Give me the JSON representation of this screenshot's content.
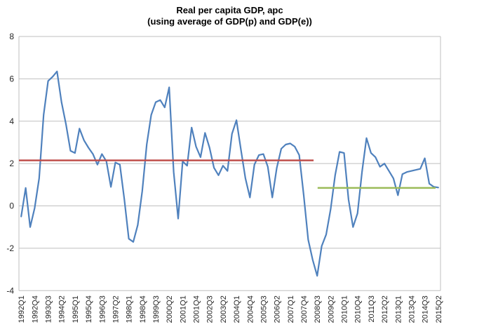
{
  "chart_data": {
    "type": "line",
    "title": "Real per capita GDP, apc",
    "subtitle": "(using average of GDP(p) and GDP(e))",
    "legend": "none",
    "grid": true,
    "ylim": [
      -4,
      8
    ],
    "yticks": [
      8,
      6,
      4,
      2,
      0,
      -2,
      -4
    ],
    "x_label_step": 3,
    "colors": {
      "series_line": "#4F81BD",
      "red_average_line": "#C0504D",
      "green_average_line": "#9BBB59",
      "gridline": "#BFBFBF",
      "axis_text": "#262626",
      "background": "#FFFFFF"
    },
    "categories": [
      "1992Q1",
      "1992Q2",
      "1992Q3",
      "1992Q4",
      "1993Q1",
      "1993Q2",
      "1993Q3",
      "1993Q4",
      "1994Q1",
      "1994Q2",
      "1994Q3",
      "1994Q4",
      "1995Q1",
      "1995Q2",
      "1995Q3",
      "1995Q4",
      "1996Q1",
      "1996Q2",
      "1996Q3",
      "1996Q4",
      "1997Q1",
      "1997Q2",
      "1997Q3",
      "1997Q4",
      "1998Q1",
      "1998Q2",
      "1998Q3",
      "1998Q4",
      "1999Q1",
      "1999Q2",
      "1999Q3",
      "1999Q4",
      "2000Q1",
      "2000Q2",
      "2000Q3",
      "2000Q4",
      "2001Q1",
      "2001Q2",
      "2001Q3",
      "2001Q4",
      "2002Q1",
      "2002Q2",
      "2002Q3",
      "2002Q4",
      "2003Q1",
      "2003Q2",
      "2003Q3",
      "2003Q4",
      "2004Q1",
      "2004Q2",
      "2004Q3",
      "2004Q4",
      "2005Q1",
      "2005Q2",
      "2005Q3",
      "2005Q4",
      "2006Q1",
      "2006Q2",
      "2006Q3",
      "2006Q4",
      "2007Q1",
      "2007Q2",
      "2007Q3",
      "2007Q4",
      "2008Q1",
      "2008Q2",
      "2008Q3",
      "2008Q4",
      "2009Q1",
      "2009Q2",
      "2009Q3",
      "2009Q4",
      "2010Q1",
      "2010Q2",
      "2010Q3",
      "2010Q4",
      "2011Q1",
      "2011Q2",
      "2011Q3",
      "2011Q4",
      "2012Q1",
      "2012Q2",
      "2012Q3",
      "2012Q4",
      "2013Q1",
      "2013Q2",
      "2013Q3",
      "2013Q4",
      "2014Q1",
      "2014Q2",
      "2014Q3",
      "2014Q4",
      "2015Q1",
      "2015Q2"
    ],
    "series": [
      {
        "name": "real-per-capita-gdp-apc",
        "color": "#4F81BD",
        "values": [
          -0.5,
          0.85,
          -1.0,
          -0.1,
          1.3,
          4.3,
          5.9,
          6.1,
          6.35,
          4.9,
          3.85,
          2.6,
          2.5,
          3.65,
          3.1,
          2.75,
          2.45,
          1.95,
          2.45,
          2.1,
          0.9,
          2.05,
          1.95,
          0.3,
          -1.55,
          -1.7,
          -0.9,
          0.7,
          2.9,
          4.3,
          4.9,
          5.0,
          4.65,
          5.6,
          1.6,
          -0.6,
          2.1,
          1.9,
          3.7,
          2.8,
          2.3,
          3.45,
          2.75,
          1.8,
          1.45,
          1.9,
          1.65,
          3.4,
          4.05,
          2.65,
          1.3,
          0.4,
          1.95,
          2.4,
          2.45,
          1.85,
          0.4,
          1.8,
          2.7,
          2.9,
          2.95,
          2.8,
          2.4,
          0.5,
          -1.6,
          -2.55,
          -3.3,
          -1.9,
          -1.35,
          -0.15,
          1.45,
          2.55,
          2.5,
          0.3,
          -1.0,
          -0.35,
          1.6,
          3.2,
          2.5,
          2.3,
          1.85,
          2.0,
          1.65,
          1.3,
          0.5,
          1.5,
          1.6,
          1.65,
          1.7,
          1.75,
          2.25,
          1.05,
          0.9,
          0.87
        ]
      }
    ],
    "reference_lines": [
      {
        "name": "red-average-line",
        "color": "#C0504D",
        "value": 2.15,
        "from_index": -0.5,
        "to_index": 65.2
      },
      {
        "name": "green-average-line",
        "color": "#9BBB59",
        "value": 0.85,
        "from_index": 66.1,
        "to_index": 92.4
      }
    ]
  }
}
